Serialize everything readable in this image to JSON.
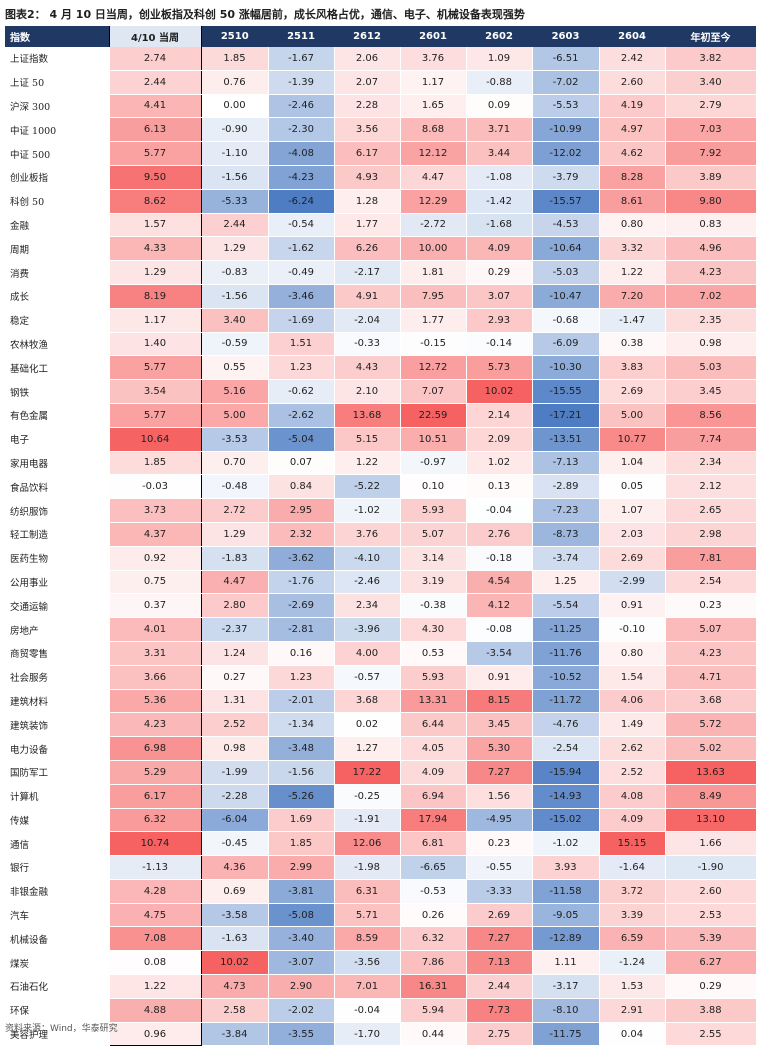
{
  "title": "图表2：  4 月 10 日当周，创业板指及科创 50 涨幅居前，成长风格占优，通信、电子、机械设备表现强势",
  "source": "资料来源：Wind，华泰研究",
  "chart_data": {
    "type": "table",
    "header": [
      "指数",
      "4/10 当周",
      "2510",
      "2511",
      "2612",
      "2601",
      "2602",
      "2603",
      "2604",
      "年初至今"
    ],
    "highlight_column": "4/10 当周",
    "groups": [
      {
        "rows": [
          {
            "name": "上证指数",
            "values": [
              "2.74",
              "1.85",
              "-1.67",
              "2.06",
              "3.76",
              "1.09",
              "-6.51",
              "2.42",
              "3.82"
            ]
          },
          {
            "name": "上证 50",
            "values": [
              "2.44",
              "0.76",
              "-1.39",
              "2.07",
              "1.17",
              "-0.88",
              "-7.02",
              "2.60",
              "3.40"
            ]
          },
          {
            "name": "沪深 300",
            "values": [
              "4.41",
              "0.00",
              "-2.46",
              "2.28",
              "1.65",
              "0.09",
              "-5.53",
              "4.19",
              "2.79"
            ]
          },
          {
            "name": "中证 1000",
            "values": [
              "6.13",
              "-0.90",
              "-2.30",
              "3.56",
              "8.68",
              "3.71",
              "-10.99",
              "4.97",
              "7.03"
            ]
          },
          {
            "name": "中证 500",
            "values": [
              "5.77",
              "-1.10",
              "-4.08",
              "6.17",
              "12.12",
              "3.44",
              "-12.02",
              "4.62",
              "7.92"
            ]
          },
          {
            "name": "创业板指",
            "values": [
              "9.50",
              "-1.56",
              "-4.23",
              "4.93",
              "4.47",
              "-1.08",
              "-3.79",
              "8.28",
              "3.89"
            ]
          },
          {
            "name": "科创 50",
            "values": [
              "8.62",
              "-5.33",
              "-6.24",
              "1.28",
              "12.29",
              "-1.42",
              "-15.57",
              "8.61",
              "9.80"
            ]
          }
        ]
      },
      {
        "rows": [
          {
            "name": "金融",
            "values": [
              "1.57",
              "2.44",
              "-0.54",
              "1.77",
              "-2.72",
              "-1.68",
              "-4.53",
              "0.80",
              "0.83"
            ]
          },
          {
            "name": "周期",
            "values": [
              "4.33",
              "1.29",
              "-1.62",
              "6.26",
              "10.00",
              "4.09",
              "-10.64",
              "3.32",
              "4.96"
            ]
          },
          {
            "name": "消费",
            "values": [
              "1.29",
              "-0.83",
              "-0.49",
              "-2.17",
              "1.81",
              "0.29",
              "-5.03",
              "1.22",
              "4.23"
            ]
          },
          {
            "name": "成长",
            "values": [
              "8.19",
              "-1.56",
              "-3.46",
              "4.91",
              "7.95",
              "3.07",
              "-10.47",
              "7.20",
              "7.02"
            ]
          },
          {
            "name": "稳定",
            "values": [
              "1.17",
              "3.40",
              "-1.69",
              "-2.04",
              "1.77",
              "2.93",
              "-0.68",
              "-1.47",
              "2.35"
            ]
          }
        ]
      },
      {
        "rows": [
          {
            "name": "农林牧渔",
            "values": [
              "1.40",
              "-0.59",
              "1.51",
              "-0.33",
              "-0.15",
              "-0.14",
              "-6.09",
              "0.38",
              "0.98"
            ]
          },
          {
            "name": "基础化工",
            "values": [
              "5.77",
              "0.55",
              "1.23",
              "4.43",
              "12.72",
              "5.73",
              "-10.30",
              "3.83",
              "5.03"
            ]
          },
          {
            "name": "钢铁",
            "values": [
              "3.54",
              "5.16",
              "-0.62",
              "2.10",
              "7.07",
              "10.02",
              "-15.55",
              "2.69",
              "3.45"
            ]
          },
          {
            "name": "有色金属",
            "values": [
              "5.77",
              "5.00",
              "-2.62",
              "13.68",
              "22.59",
              "2.14",
              "-17.21",
              "5.00",
              "8.56"
            ]
          },
          {
            "name": "电子",
            "values": [
              "10.64",
              "-3.53",
              "-5.04",
              "5.15",
              "10.51",
              "2.09",
              "-13.51",
              "10.77",
              "7.74"
            ]
          },
          {
            "name": "家用电器",
            "values": [
              "1.85",
              "0.70",
              "0.07",
              "1.22",
              "-0.97",
              "1.02",
              "-7.13",
              "1.04",
              "2.34"
            ]
          },
          {
            "name": "食品饮料",
            "values": [
              "-0.03",
              "-0.48",
              "0.84",
              "-5.22",
              "0.10",
              "0.13",
              "-2.89",
              "0.05",
              "2.12"
            ]
          },
          {
            "name": "纺织服饰",
            "values": [
              "3.73",
              "2.72",
              "2.95",
              "-1.02",
              "5.93",
              "-0.04",
              "-7.23",
              "1.07",
              "2.65"
            ]
          },
          {
            "name": "轻工制造",
            "values": [
              "4.37",
              "1.29",
              "2.32",
              "3.76",
              "5.07",
              "2.76",
              "-8.73",
              "2.03",
              "2.98"
            ]
          },
          {
            "name": "医药生物",
            "values": [
              "0.92",
              "-1.83",
              "-3.62",
              "-4.10",
              "3.14",
              "-0.18",
              "-3.74",
              "2.69",
              "7.81"
            ]
          },
          {
            "name": "公用事业",
            "values": [
              "0.75",
              "4.47",
              "-1.76",
              "-2.46",
              "3.19",
              "4.54",
              "1.25",
              "-2.99",
              "2.54"
            ]
          },
          {
            "name": "交通运输",
            "values": [
              "0.37",
              "2.80",
              "-2.69",
              "2.34",
              "-0.38",
              "4.12",
              "-5.54",
              "0.91",
              "0.23"
            ]
          },
          {
            "name": "房地产",
            "values": [
              "4.01",
              "-2.37",
              "-2.81",
              "-3.96",
              "4.30",
              "-0.08",
              "-11.25",
              "-0.10",
              "5.07"
            ]
          },
          {
            "name": "商贸零售",
            "values": [
              "3.31",
              "1.24",
              "0.16",
              "4.00",
              "0.53",
              "-3.54",
              "-11.76",
              "0.80",
              "4.23"
            ]
          },
          {
            "name": "社会服务",
            "values": [
              "3.66",
              "0.27",
              "1.23",
              "-0.57",
              "5.93",
              "0.91",
              "-10.52",
              "1.54",
              "4.71"
            ]
          },
          {
            "name": "建筑材料",
            "values": [
              "5.36",
              "1.31",
              "-2.01",
              "3.68",
              "13.31",
              "8.15",
              "-11.72",
              "4.06",
              "3.68"
            ]
          },
          {
            "name": "建筑装饰",
            "values": [
              "4.23",
              "2.52",
              "-1.34",
              "0.02",
              "6.44",
              "3.45",
              "-4.76",
              "1.49",
              "5.72"
            ]
          },
          {
            "name": "电力设备",
            "values": [
              "6.98",
              "0.98",
              "-3.48",
              "1.27",
              "4.05",
              "5.30",
              "-2.54",
              "2.62",
              "5.02"
            ]
          },
          {
            "name": "国防军工",
            "values": [
              "5.29",
              "-1.99",
              "-1.56",
              "17.22",
              "4.09",
              "7.27",
              "-15.94",
              "2.52",
              "13.63"
            ]
          },
          {
            "name": "计算机",
            "values": [
              "6.17",
              "-2.28",
              "-5.26",
              "-0.25",
              "6.94",
              "1.56",
              "-14.93",
              "4.08",
              "8.49"
            ]
          },
          {
            "name": "传媒",
            "values": [
              "6.32",
              "-6.04",
              "1.69",
              "-1.91",
              "17.94",
              "-4.95",
              "-15.02",
              "4.09",
              "13.10"
            ]
          },
          {
            "name": "通信",
            "values": [
              "10.74",
              "-0.45",
              "1.85",
              "12.06",
              "6.81",
              "0.23",
              "-1.02",
              "15.15",
              "1.66"
            ]
          },
          {
            "name": "银行",
            "values": [
              "-1.13",
              "4.36",
              "2.99",
              "-1.98",
              "-6.65",
              "-0.55",
              "3.93",
              "-1.64",
              "-1.90"
            ]
          },
          {
            "name": "非银金融",
            "values": [
              "4.28",
              "0.69",
              "-3.81",
              "6.31",
              "-0.53",
              "-3.33",
              "-11.58",
              "3.72",
              "2.60"
            ]
          },
          {
            "name": "汽车",
            "values": [
              "4.75",
              "-3.58",
              "-5.08",
              "5.71",
              "0.26",
              "2.69",
              "-9.05",
              "3.39",
              "2.53"
            ]
          },
          {
            "name": "机械设备",
            "values": [
              "7.08",
              "-1.63",
              "-3.40",
              "8.59",
              "6.32",
              "7.27",
              "-12.89",
              "6.59",
              "5.39"
            ]
          },
          {
            "name": "煤炭",
            "values": [
              "0.08",
              "10.02",
              "-3.07",
              "-3.56",
              "7.86",
              "7.13",
              "1.11",
              "-1.24",
              "6.27"
            ]
          },
          {
            "name": "石油石化",
            "values": [
              "1.22",
              "4.73",
              "2.90",
              "7.01",
              "16.31",
              "2.44",
              "-3.17",
              "1.53",
              "0.29"
            ]
          },
          {
            "name": "环保",
            "values": [
              "4.88",
              "2.58",
              "-2.02",
              "-0.04",
              "5.94",
              "7.73",
              "-8.10",
              "2.91",
              "3.88"
            ]
          },
          {
            "name": "美容护理",
            "values": [
              "0.96",
              "-3.84",
              "-3.55",
              "-1.70",
              "0.44",
              "2.75",
              "-11.75",
              "0.04",
              "2.55"
            ]
          }
        ]
      }
    ]
  }
}
